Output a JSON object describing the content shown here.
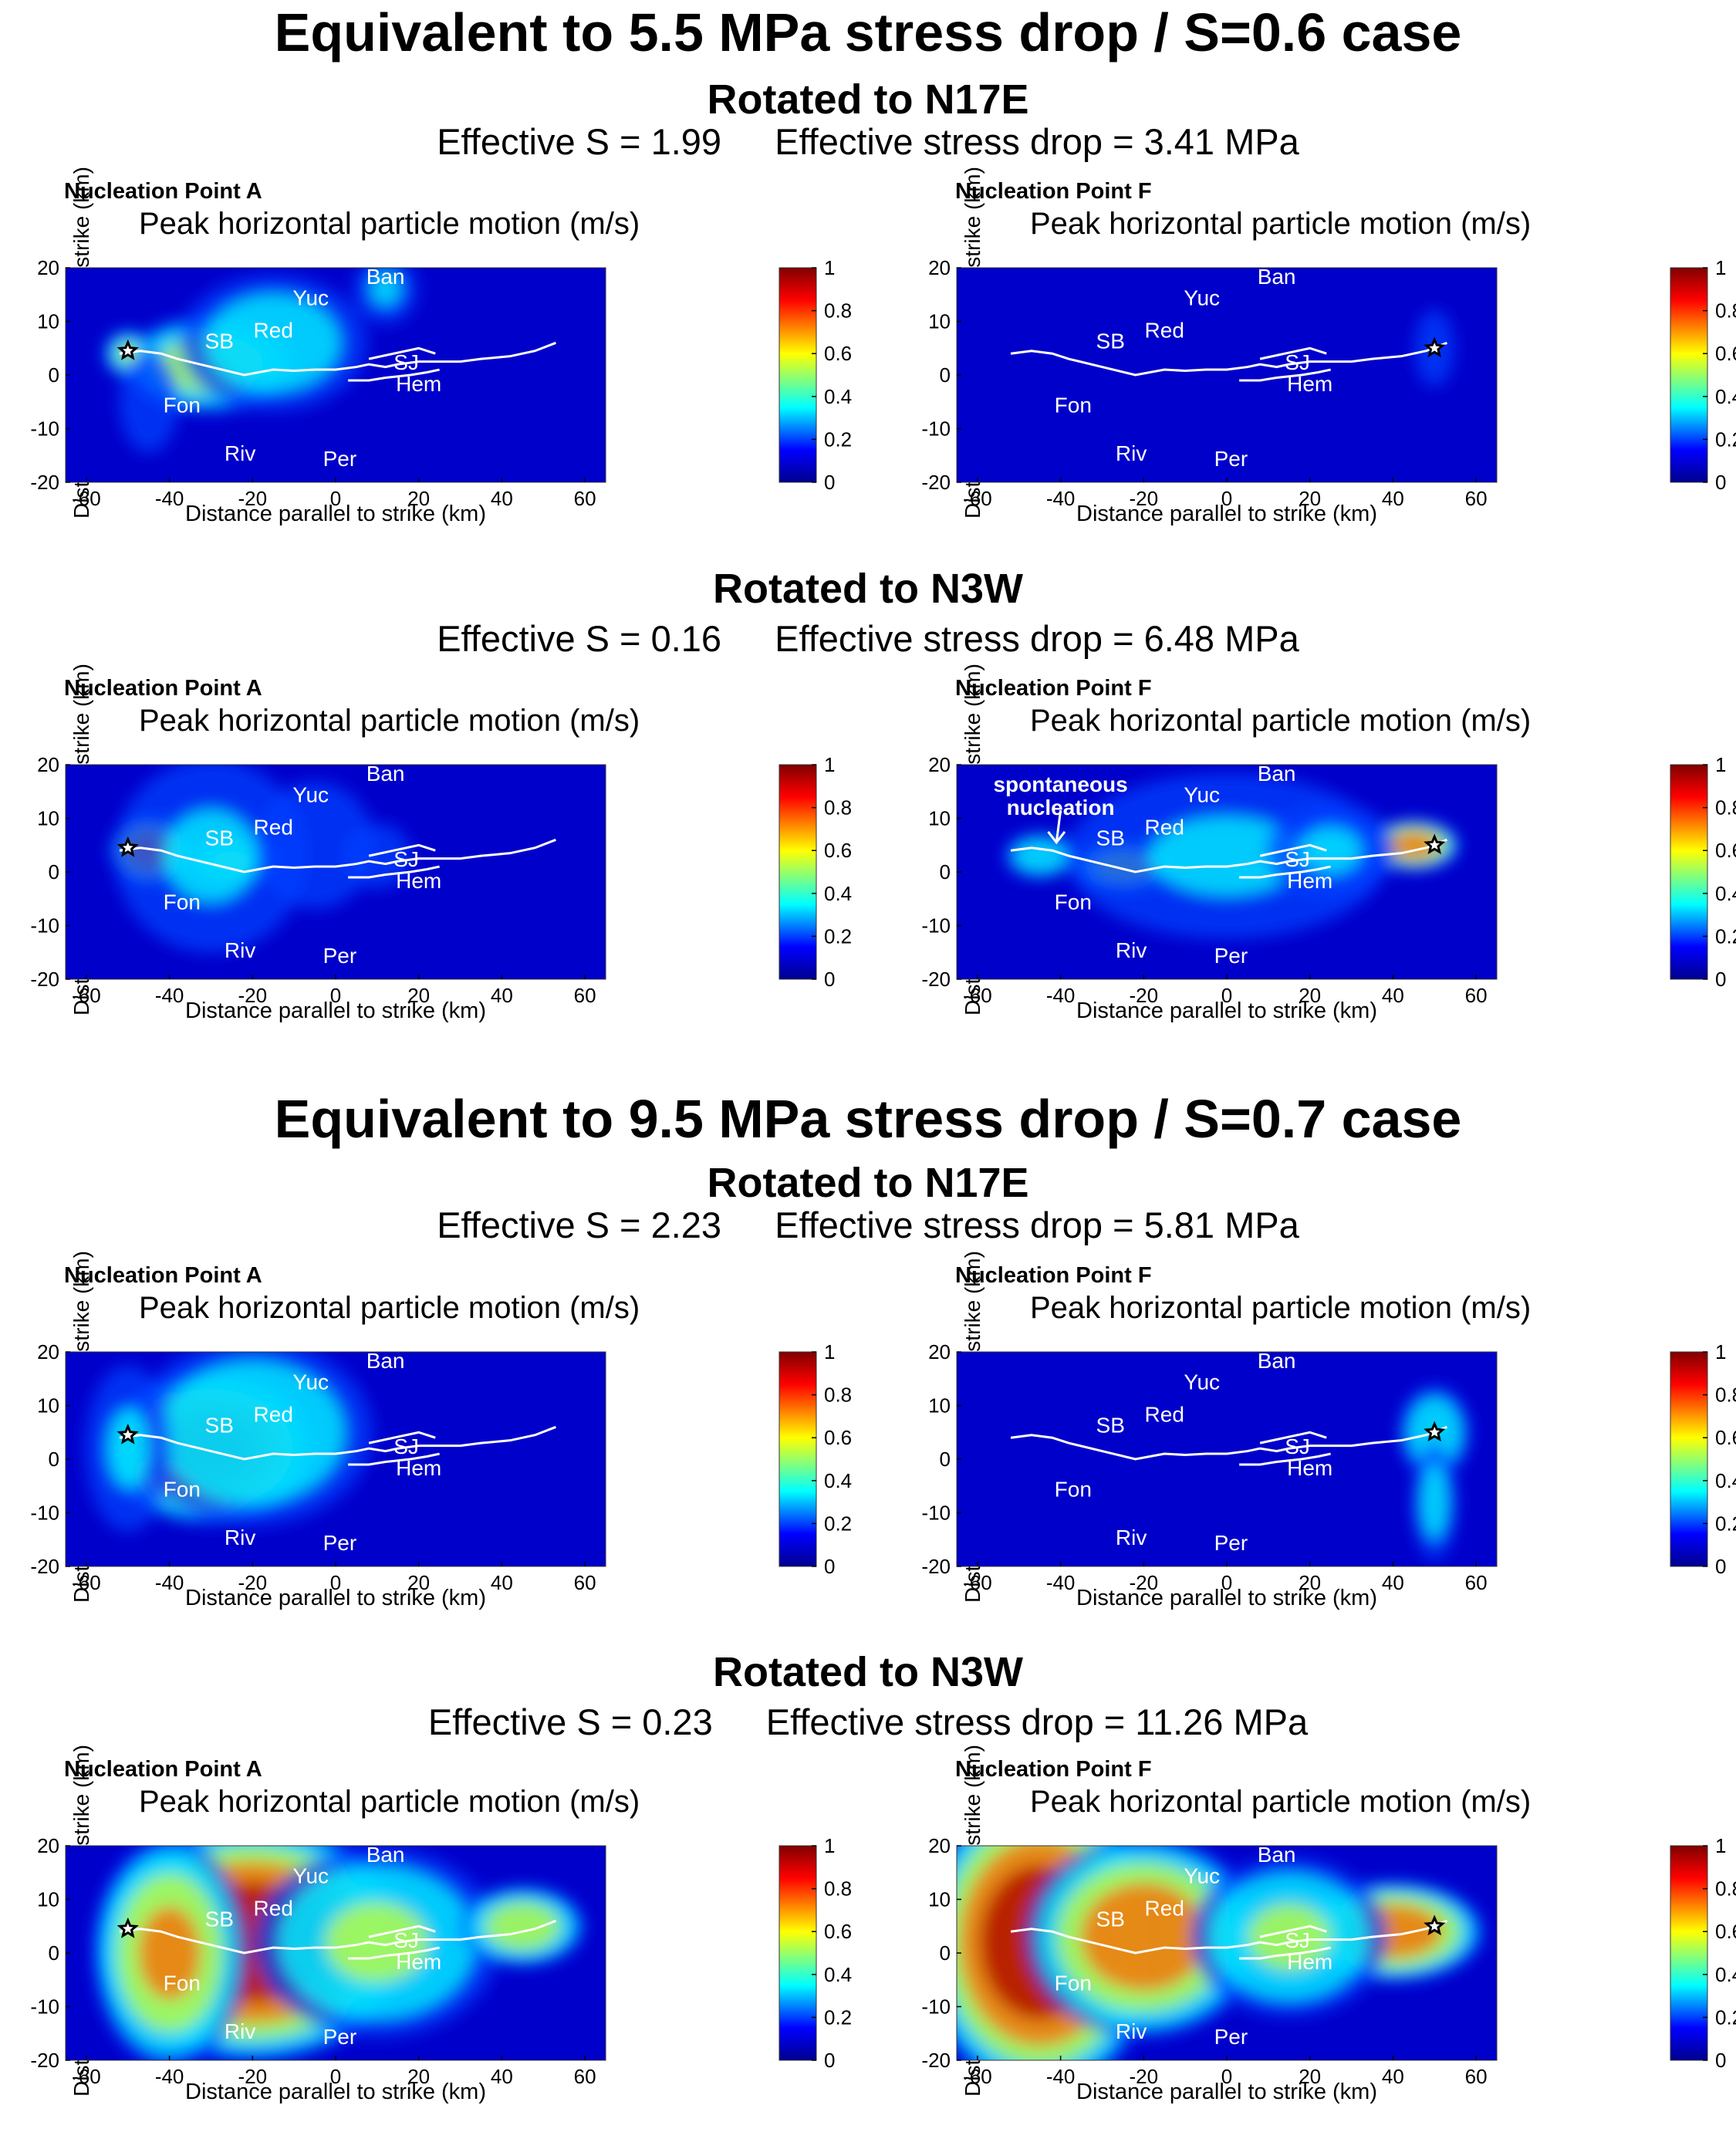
{
  "sections": [
    {
      "title": "Equivalent to 5.5 MPa stress drop / S=0.6 case",
      "rows": [
        {
          "rotation": "Rotated to N17E",
          "effective_s": "Effective S = 1.99",
          "effective_drop": "Effective stress drop = 3.41 MPa",
          "panels": [
            {
              "nucleation": "Nucleation Point A",
              "scenario": "a_n17e_55"
            },
            {
              "nucleation": "Nucleation Point F",
              "scenario": "f_n17e_55"
            }
          ]
        },
        {
          "rotation": "Rotated to N3W",
          "effective_s": "Effective S = 0.16",
          "effective_drop": "Effective stress drop = 6.48 MPa",
          "panels": [
            {
              "nucleation": "Nucleation Point A",
              "scenario": "a_n3w_55"
            },
            {
              "nucleation": "Nucleation Point F",
              "scenario": "f_n3w_55",
              "annotation": "spontaneous nucleation"
            }
          ]
        }
      ]
    },
    {
      "title": "Equivalent to 9.5 MPa stress drop / S=0.7 case",
      "rows": [
        {
          "rotation": "Rotated to N17E",
          "effective_s": "Effective S = 2.23",
          "effective_drop": "Effective stress drop = 5.81 MPa",
          "panels": [
            {
              "nucleation": "Nucleation Point A",
              "scenario": "a_n17e_95"
            },
            {
              "nucleation": "Nucleation Point F",
              "scenario": "f_n17e_95"
            }
          ]
        },
        {
          "rotation": "Rotated to N3W",
          "effective_s": "Effective S = 0.23",
          "effective_drop": "Effective stress drop = 11.26 MPa",
          "panels": [
            {
              "nucleation": "Nucleation Point A",
              "scenario": "a_n3w_95"
            },
            {
              "nucleation": "Nucleation Point F",
              "scenario": "f_n3w_95"
            }
          ]
        }
      ]
    }
  ],
  "chart_data": {
    "type": "heatmap",
    "title": "Peak horizontal particle motion (m/s)",
    "xlabel": "Distance parallel to strike (km)",
    "ylabel": "Distance perpendicular to strike (km)",
    "xlim": [
      -65,
      65
    ],
    "ylim": [
      -20,
      20
    ],
    "xticks": [
      -60,
      -40,
      -20,
      0,
      20,
      40,
      60
    ],
    "yticks": [
      20,
      10,
      0,
      -10,
      -20
    ],
    "colorbar": {
      "range": [
        0,
        1
      ],
      "ticks": [
        1,
        0.8,
        0.6,
        0.4,
        0.2,
        0
      ]
    },
    "colormap": [
      "#00008f",
      "#0000ff",
      "#00ffff",
      "#ffff00",
      "#ff0000",
      "#800000"
    ],
    "star_A": [
      -50,
      4.5
    ],
    "star_F": [
      50,
      5
    ],
    "fault_trace": [
      [
        -52,
        4
      ],
      [
        -47,
        4.5
      ],
      [
        -42,
        4
      ],
      [
        -38,
        3
      ],
      [
        -30,
        1.5
      ],
      [
        -22,
        0
      ],
      [
        -15,
        1
      ],
      [
        -10,
        0.8
      ],
      [
        -5,
        1
      ],
      [
        0,
        1
      ],
      [
        5,
        1.5
      ],
      [
        8,
        2
      ],
      [
        12,
        1.5
      ],
      [
        15,
        2
      ],
      [
        20,
        2.5
      ],
      [
        25,
        2.5
      ],
      [
        30,
        2.5
      ],
      [
        35,
        3
      ],
      [
        42,
        3.5
      ],
      [
        48,
        4.5
      ],
      [
        53,
        6
      ]
    ],
    "fault_trace_sj": [
      [
        3,
        -1
      ],
      [
        8,
        -1
      ],
      [
        12,
        -0.5
      ],
      [
        18,
        0
      ],
      [
        22,
        0.5
      ],
      [
        25,
        1
      ]
    ],
    "fault_trace_upper": [
      [
        8,
        3
      ],
      [
        14,
        4
      ],
      [
        20,
        5
      ],
      [
        24,
        4
      ]
    ],
    "place_labels": [
      {
        "name": "Ban",
        "x": 12,
        "y": 17
      },
      {
        "name": "Yuc",
        "x": -6,
        "y": 13
      },
      {
        "name": "Red",
        "x": -15,
        "y": 7
      },
      {
        "name": "SB",
        "x": -28,
        "y": 5
      },
      {
        "name": "SJ",
        "x": 17,
        "y": 1
      },
      {
        "name": "Hem",
        "x": 20,
        "y": -3
      },
      {
        "name": "Fon",
        "x": -37,
        "y": -7
      },
      {
        "name": "Riv",
        "x": -23,
        "y": -16
      },
      {
        "name": "Per",
        "x": 1,
        "y": -17
      }
    ],
    "scenarios": {
      "a_n17e_55": {
        "star": "A",
        "sources": [
          {
            "x": -30,
            "y": 2,
            "sx": 14,
            "sy": 6,
            "a": 0.6
          },
          {
            "x": -15,
            "y": 6,
            "sx": 16,
            "sy": 9,
            "a": 0.4
          },
          {
            "x": -50,
            "y": 4,
            "sx": 4,
            "sy": 3,
            "a": 0.5
          },
          {
            "x": 12,
            "y": 16,
            "sx": 6,
            "sy": 5,
            "a": 0.3
          },
          {
            "x": -45,
            "y": -5,
            "sx": 6,
            "sy": 8,
            "a": 0.25
          }
        ]
      },
      "f_n17e_55": {
        "star": "F",
        "sources": [
          {
            "x": 50,
            "y": 5,
            "sx": 4,
            "sy": 6,
            "a": 0.25
          },
          {
            "x": 55,
            "y": -5,
            "sx": 3,
            "sy": 5,
            "a": 0.1
          }
        ]
      },
      "a_n3w_55": {
        "star": "A",
        "sources": [
          {
            "x": -45,
            "y": 4,
            "sx": 6,
            "sy": 4,
            "a": 0.8
          },
          {
            "x": -25,
            "y": 2,
            "sx": 8,
            "sy": 3,
            "a": 0.5
          },
          {
            "x": -30,
            "y": 3,
            "sx": 18,
            "sy": 14,
            "a": 0.3
          },
          {
            "x": -5,
            "y": 5,
            "sx": 12,
            "sy": 10,
            "a": 0.25
          },
          {
            "x": 10,
            "y": 3,
            "sx": 8,
            "sy": 6,
            "a": 0.2
          }
        ]
      },
      "f_n3w_55": {
        "star": "F",
        "sources": [
          {
            "x": 45,
            "y": 5,
            "sx": 7,
            "sy": 3,
            "a": 0.8
          },
          {
            "x": -25,
            "y": 1,
            "sx": 8,
            "sy": 3,
            "a": 0.6
          },
          {
            "x": -45,
            "y": 3,
            "sx": 6,
            "sy": 3,
            "a": 0.45
          },
          {
            "x": 0,
            "y": 3,
            "sx": 30,
            "sy": 12,
            "a": 0.3
          },
          {
            "x": 25,
            "y": 4,
            "sx": 12,
            "sy": 7,
            "a": 0.3
          }
        ]
      },
      "a_n17e_95": {
        "star": "A",
        "sources": [
          {
            "x": -30,
            "y": 2,
            "sx": 16,
            "sy": 9,
            "a": 0.9
          },
          {
            "x": -20,
            "y": 5,
            "sx": 20,
            "sy": 12,
            "a": 0.45
          },
          {
            "x": -50,
            "y": 2,
            "sx": 8,
            "sy": 12,
            "a": 0.3
          }
        ]
      },
      "f_n17e_95": {
        "star": "F",
        "sources": [
          {
            "x": 50,
            "y": 5,
            "sx": 6,
            "sy": 6,
            "a": 0.45
          },
          {
            "x": 50,
            "y": -8,
            "sx": 4,
            "sy": 8,
            "a": 0.35
          }
        ]
      },
      "a_n3w_95": {
        "star": "A",
        "sources": [
          {
            "x": -20,
            "y": 2,
            "sx": 24,
            "sy": 14,
            "a": 1.0
          },
          {
            "x": -40,
            "y": 0,
            "sx": 12,
            "sy": 14,
            "a": 0.7
          },
          {
            "x": 10,
            "y": 2,
            "sx": 20,
            "sy": 12,
            "a": 0.5
          },
          {
            "x": 45,
            "y": 5,
            "sx": 10,
            "sy": 5,
            "a": 0.6
          }
        ]
      },
      "f_n3w_95": {
        "star": "F",
        "sources": [
          {
            "x": -45,
            "y": 2,
            "sx": 18,
            "sy": 18,
            "a": 1.0
          },
          {
            "x": -20,
            "y": 3,
            "sx": 18,
            "sy": 12,
            "a": 0.8
          },
          {
            "x": 40,
            "y": 4,
            "sx": 14,
            "sy": 6,
            "a": 0.8
          },
          {
            "x": 15,
            "y": 3,
            "sx": 16,
            "sy": 10,
            "a": 0.5
          }
        ]
      }
    }
  }
}
